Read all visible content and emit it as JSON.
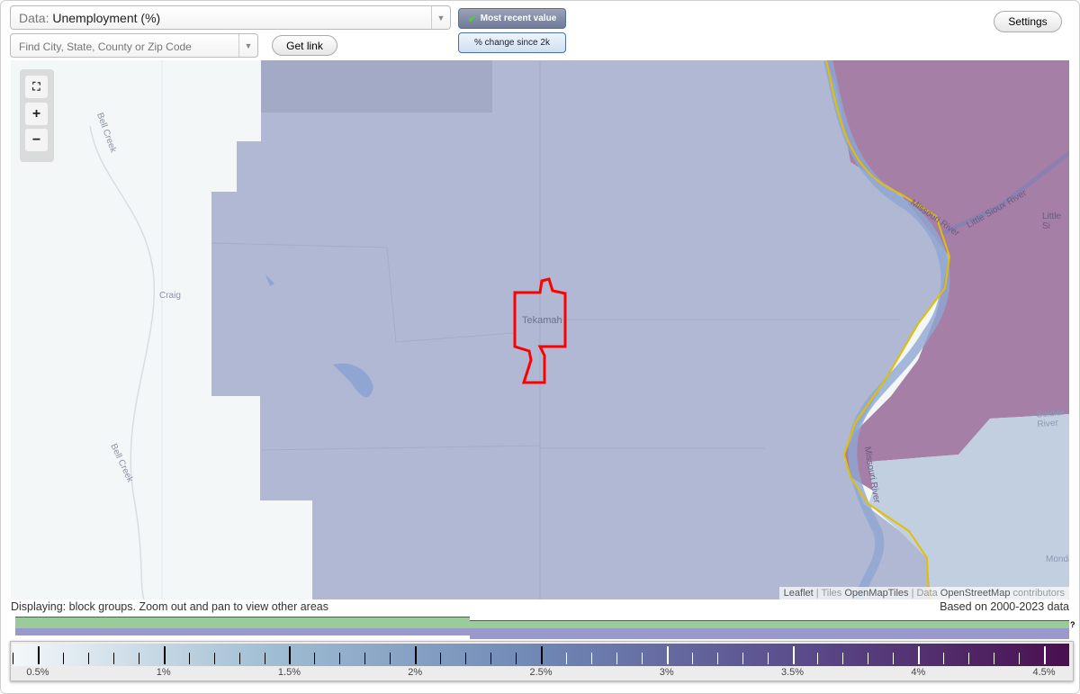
{
  "header": {
    "data_select": {
      "prefix": "Data:",
      "value": "Unemployment (%)"
    },
    "search": {
      "placeholder": "Find City, State, County or Zip Code"
    },
    "get_link_label": "Get link",
    "mode_buttons": [
      {
        "label": "Most recent value",
        "selected": true
      },
      {
        "label": "% change since 2k",
        "selected": false
      }
    ],
    "settings_label": "Settings"
  },
  "map": {
    "zoom_controls": {
      "fit": "fit-bounds-icon",
      "zoom_in": "+",
      "zoom_out": "−"
    },
    "labels": {
      "bell_creek": "Bell Creek",
      "craig": "Craig",
      "tekamah": "Tekamah",
      "missouri_river": "Missouri River",
      "little_sioux_river": "Little Sioux River",
      "little_sioux": "Little Si",
      "soldier_river": "Soldier River",
      "missouri_river_2": "Missouri River",
      "monda": "Monda",
      "bell_creek_2": "Bell Creek"
    },
    "attribution": {
      "leaflet": "Leaflet",
      "sep": "|",
      "tiles_prefix": "Tiles",
      "tiles": "OpenMapTiles",
      "data_prefix": "Data",
      "data": "OpenStreetMap",
      "suffix": "contributors"
    },
    "colors": {
      "background": "#f4f7f8",
      "block_group": "#b1b8d3",
      "block_group_dark": "#a3aac5",
      "high": "#a57fa5",
      "low": "#c2cfe0",
      "selected_outline": "#ff0000",
      "river": "#8fa6d2",
      "county_line": "#e0c000"
    }
  },
  "footer": {
    "displaying": "Displaying: block groups. Zoom out and pan to view other areas",
    "based_on": "Based on 2000-2023 data",
    "range_help": "?",
    "range_colors": {
      "green": "#99cc99",
      "purple": "#9999cc"
    },
    "legend": {
      "min": 0.4,
      "max": 4.6,
      "labels": [
        "0.5%",
        "1%",
        "1.5%",
        "2%",
        "2.5%",
        "3%",
        "3.5%",
        "4%",
        "4.5%"
      ],
      "gradient": [
        "#f4f8fa",
        "#9ebcd2",
        "#6f87b5",
        "#5a4b8a",
        "#4a0f4f"
      ]
    }
  }
}
